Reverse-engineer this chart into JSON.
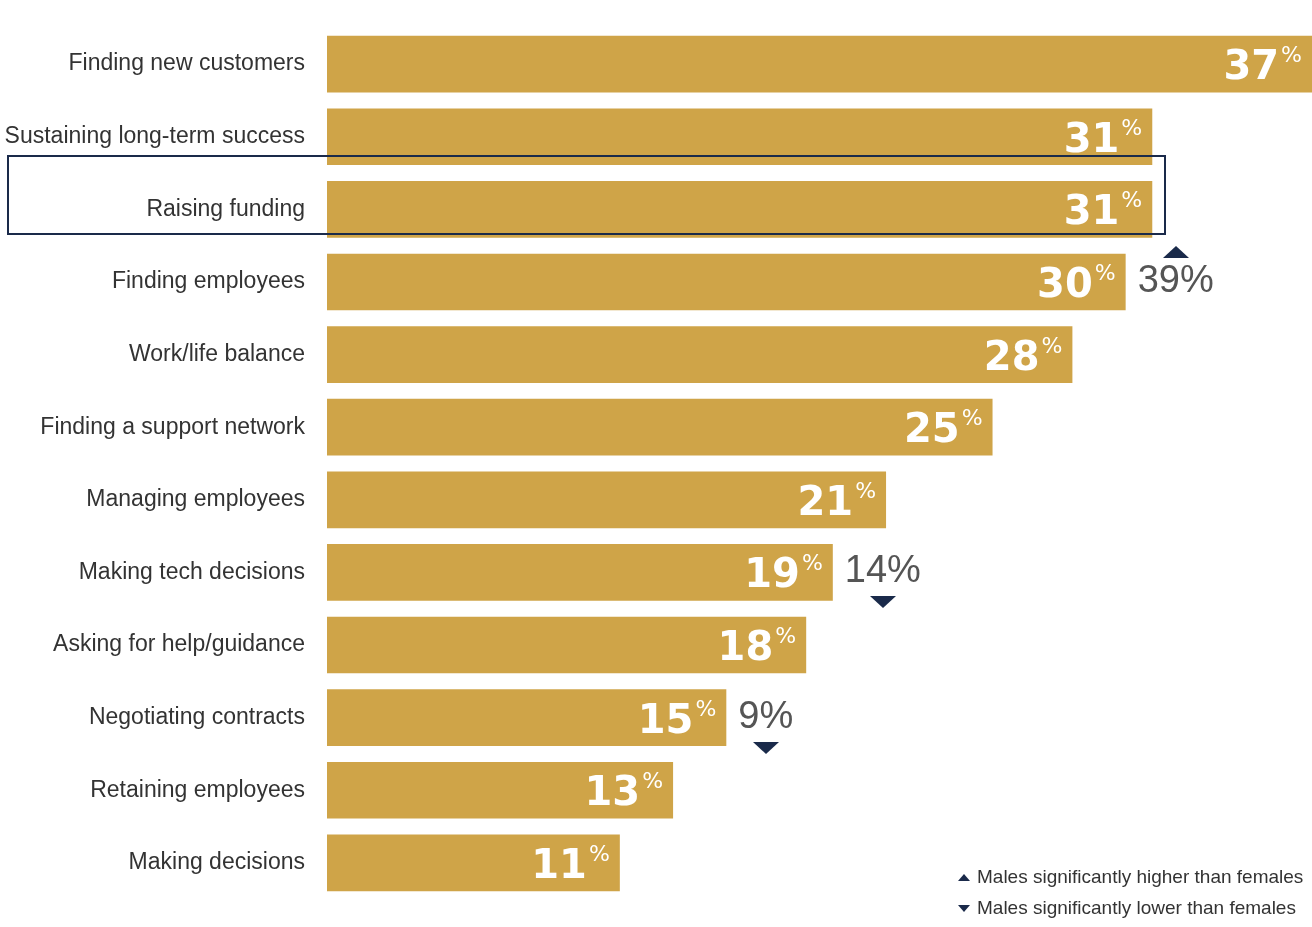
{
  "chart_data": {
    "type": "bar",
    "orientation": "horizontal",
    "color": "#cfa448",
    "categories": [
      "Finding new customers",
      "Sustaining long-term success",
      "Raising funding",
      "Finding employees",
      "Work/life balance",
      "Finding a support network",
      "Managing employees",
      "Making tech decisions",
      "Asking for help/guidance",
      "Negotiating contracts",
      "Retaining employees",
      "Making decisions"
    ],
    "values": [
      37,
      31,
      31,
      30,
      28,
      25,
      21,
      19,
      18,
      15,
      13,
      11
    ],
    "value_labels": [
      "37%",
      "31%",
      "31%",
      "30%",
      "28%",
      "25%",
      "21%",
      "19%",
      "18%",
      "15%",
      "13%",
      "11%"
    ],
    "legend": false,
    "annotations": [
      "39%",
      "14%",
      "9%",
      "Males significantly higher than females",
      "Males significantly lower than females"
    ]
  }
}
